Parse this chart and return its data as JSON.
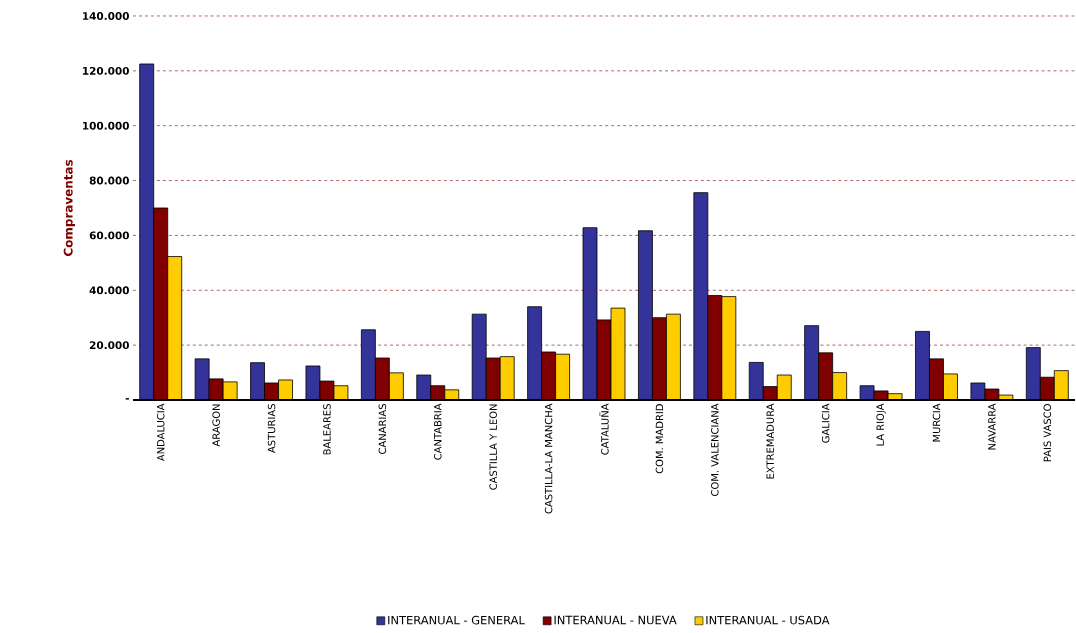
{
  "chart_data": {
    "type": "bar",
    "ylabel": "Compraventas",
    "categories": [
      "ANDALUCIA",
      "ARAGON",
      "ASTURIAS",
      "BALEARES",
      "CANARIAS",
      "CANTABRIA",
      "CASTILLA Y LEON",
      "CASTILLA-LA MANCHA",
      "CATALUÑA",
      "COM. MADRID",
      "COM. VALENCIANA",
      "EXTREMADURA",
      "GALICIA",
      "LA RIOJA",
      "MURCIA",
      "NAVARRA",
      "PAIS VASCO"
    ],
    "series": [
      {
        "name": "INTERANUAL - GENERAL",
        "color": "#333399",
        "values": [
          122500,
          15000,
          13600,
          12400,
          25600,
          9100,
          31300,
          34000,
          62800,
          61700,
          75600,
          13700,
          27100,
          5200,
          25000,
          6200,
          19100
        ]
      },
      {
        "name": "INTERANUAL - NUEVA",
        "color": "#800000",
        "values": [
          70000,
          7700,
          6200,
          6900,
          15300,
          5200,
          15300,
          17500,
          29200,
          30000,
          38100,
          4900,
          17200,
          3300,
          15000,
          4000,
          8300
        ]
      },
      {
        "name": "INTERANUAL - USADA",
        "color": "#ffcc00",
        "values": [
          52300,
          6600,
          7300,
          5200,
          9900,
          3700,
          15800,
          16700,
          33500,
          31300,
          37700,
          9100,
          10000,
          2300,
          9500,
          1800,
          10700
        ]
      }
    ],
    "ylim": [
      0,
      140000
    ],
    "yticks": [
      {
        "value": 0,
        "label": "-"
      },
      {
        "value": 20000,
        "label": "20.000"
      },
      {
        "value": 40000,
        "label": "40.000"
      },
      {
        "value": 60000,
        "label": "60.000"
      },
      {
        "value": 80000,
        "label": "80.000"
      },
      {
        "value": 100000,
        "label": "100.000"
      },
      {
        "value": 120000,
        "label": "120.000"
      },
      {
        "value": 140000,
        "label": "140.000"
      }
    ],
    "grid": "y",
    "legend": "bottom"
  }
}
